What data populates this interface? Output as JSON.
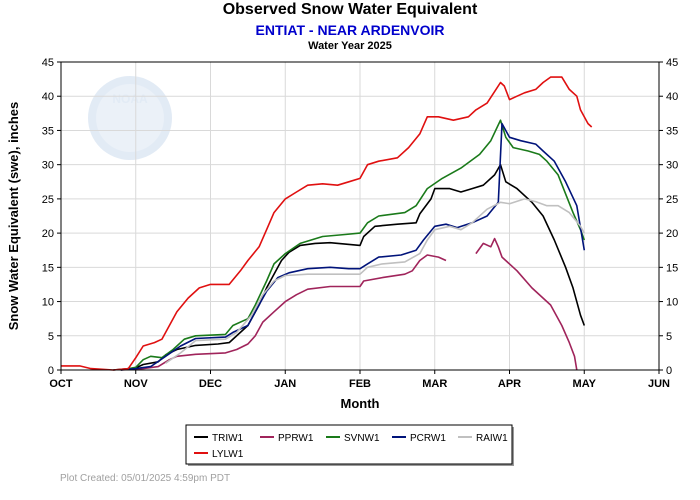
{
  "header": {
    "title": "Observed Snow Water Equivalent",
    "subtitle": "ENTIAT - NEAR ARDENVOIR",
    "caption": "Water Year 2025"
  },
  "footer": {
    "plot_created": "Plot Created: 05/01/2025 4:59pm PDT"
  },
  "colors": {
    "subtitle": "#0000cc",
    "grid": "#d9d9d9",
    "footnote": "#a0a0a0"
  },
  "logo": {
    "text": "NOAA"
  },
  "chart_data": {
    "type": "line",
    "title": "Observed Snow Water Equivalent",
    "xlabel": "Month",
    "ylabel": "Snow Water Equivalent (swe),  inches",
    "x_unit": "month index from Oct 1 (0 = Oct, 1 = Nov, ... 8 = Jun)",
    "x_ticks": [
      "OCT",
      "NOV",
      "DEC",
      "JAN",
      "FEB",
      "MAR",
      "APR",
      "MAY",
      "JUN"
    ],
    "xlim": [
      0,
      8
    ],
    "ylim": [
      0,
      45
    ],
    "y_ticks": [
      0,
      5,
      10,
      15,
      20,
      25,
      30,
      35,
      40,
      45
    ],
    "grid": true,
    "legend_position": "bottom",
    "series": [
      {
        "name": "TRIW1",
        "color": "#000000",
        "points": [
          [
            0.7,
            0
          ],
          [
            1.0,
            0.3
          ],
          [
            1.1,
            0.8
          ],
          [
            1.3,
            1.2
          ],
          [
            1.4,
            2.2
          ],
          [
            1.55,
            3.0
          ],
          [
            1.8,
            3.6
          ],
          [
            2.1,
            3.8
          ],
          [
            2.25,
            4.0
          ],
          [
            2.5,
            6.5
          ],
          [
            2.65,
            9.5
          ],
          [
            2.75,
            12
          ],
          [
            2.85,
            14
          ],
          [
            2.95,
            16
          ],
          [
            3.05,
            17.2
          ],
          [
            3.2,
            18.2
          ],
          [
            3.4,
            18.5
          ],
          [
            3.6,
            18.6
          ],
          [
            3.8,
            18.4
          ],
          [
            4.0,
            18.2
          ],
          [
            4.05,
            19.5
          ],
          [
            4.2,
            21.0
          ],
          [
            4.5,
            21.3
          ],
          [
            4.75,
            21.5
          ],
          [
            4.8,
            22.8
          ],
          [
            4.95,
            25.0
          ],
          [
            5.0,
            26.5
          ],
          [
            5.2,
            26.5
          ],
          [
            5.35,
            26.0
          ],
          [
            5.5,
            26.5
          ],
          [
            5.65,
            27.0
          ],
          [
            5.8,
            28.5
          ],
          [
            5.88,
            30.0
          ],
          [
            5.95,
            27.5
          ],
          [
            6.1,
            26.5
          ],
          [
            6.3,
            24.5
          ],
          [
            6.45,
            22.5
          ],
          [
            6.6,
            19.0
          ],
          [
            6.75,
            15.0
          ],
          [
            6.85,
            12.0
          ],
          [
            6.95,
            8.0
          ],
          [
            7.0,
            6.5
          ]
        ]
      },
      {
        "name": "PPRW1",
        "color": "#a0245b",
        "segments": [
          [
            [
              0.8,
              0
            ],
            [
              1.1,
              0.2
            ],
            [
              1.3,
              0.5
            ],
            [
              1.45,
              1.5
            ],
            [
              1.55,
              2.0
            ],
            [
              1.8,
              2.3
            ],
            [
              2.2,
              2.5
            ],
            [
              2.35,
              3.0
            ],
            [
              2.5,
              3.8
            ],
            [
              2.6,
              5.0
            ],
            [
              2.7,
              7.0
            ],
            [
              2.85,
              8.5
            ],
            [
              3.0,
              10.0
            ],
            [
              3.15,
              11.0
            ],
            [
              3.3,
              11.8
            ],
            [
              3.6,
              12.2
            ],
            [
              4.0,
              12.2
            ],
            [
              4.05,
              13.0
            ],
            [
              4.3,
              13.5
            ],
            [
              4.6,
              14.0
            ],
            [
              4.7,
              14.5
            ],
            [
              4.8,
              16.0
            ],
            [
              4.9,
              16.8
            ],
            [
              5.05,
              16.5
            ],
            [
              5.15,
              16.0
            ]
          ],
          [
            [
              5.55,
              17.0
            ],
            [
              5.65,
              18.5
            ],
            [
              5.75,
              18.0
            ],
            [
              5.8,
              19.2
            ],
            [
              5.85,
              18.0
            ],
            [
              5.9,
              16.5
            ],
            [
              6.1,
              14.5
            ],
            [
              6.3,
              12.0
            ],
            [
              6.45,
              10.5
            ],
            [
              6.55,
              9.5
            ],
            [
              6.7,
              6.5
            ],
            [
              6.8,
              4.0
            ],
            [
              6.87,
              2.0
            ],
            [
              6.9,
              0.0
            ]
          ]
        ]
      },
      {
        "name": "SVNW1",
        "color": "#1a7a1a",
        "points": [
          [
            0.8,
            0
          ],
          [
            1.0,
            0.4
          ],
          [
            1.1,
            1.5
          ],
          [
            1.2,
            2.0
          ],
          [
            1.35,
            1.8
          ],
          [
            1.5,
            3.0
          ],
          [
            1.65,
            4.5
          ],
          [
            1.8,
            5.0
          ],
          [
            2.2,
            5.2
          ],
          [
            2.3,
            6.5
          ],
          [
            2.5,
            7.5
          ],
          [
            2.6,
            9.5
          ],
          [
            2.75,
            13.0
          ],
          [
            2.85,
            15.5
          ],
          [
            3.0,
            17.0
          ],
          [
            3.2,
            18.5
          ],
          [
            3.5,
            19.5
          ],
          [
            3.8,
            19.8
          ],
          [
            4.0,
            20.0
          ],
          [
            4.1,
            21.5
          ],
          [
            4.25,
            22.5
          ],
          [
            4.6,
            23.0
          ],
          [
            4.75,
            24.0
          ],
          [
            4.9,
            26.5
          ],
          [
            5.1,
            28.0
          ],
          [
            5.35,
            29.5
          ],
          [
            5.6,
            31.5
          ],
          [
            5.75,
            33.5
          ],
          [
            5.88,
            36.5
          ],
          [
            5.95,
            34.0
          ],
          [
            6.05,
            32.5
          ],
          [
            6.25,
            32.0
          ],
          [
            6.4,
            31.5
          ],
          [
            6.5,
            30.5
          ],
          [
            6.65,
            28.5
          ],
          [
            6.85,
            23.0
          ],
          [
            6.95,
            20.5
          ],
          [
            7.0,
            19.0
          ]
        ]
      },
      {
        "name": "PCRW1",
        "color": "#00137a",
        "points": [
          [
            0.8,
            0
          ],
          [
            1.0,
            0.2
          ],
          [
            1.2,
            0.5
          ],
          [
            1.4,
            2.0
          ],
          [
            1.6,
            3.5
          ],
          [
            1.8,
            4.6
          ],
          [
            2.2,
            4.8
          ],
          [
            2.3,
            5.5
          ],
          [
            2.5,
            6.5
          ],
          [
            2.6,
            8.5
          ],
          [
            2.75,
            11.5
          ],
          [
            2.9,
            13.5
          ],
          [
            3.05,
            14.2
          ],
          [
            3.3,
            14.8
          ],
          [
            3.6,
            15.0
          ],
          [
            3.85,
            14.8
          ],
          [
            4.0,
            14.8
          ],
          [
            4.1,
            15.5
          ],
          [
            4.25,
            16.5
          ],
          [
            4.55,
            16.8
          ],
          [
            4.75,
            17.5
          ],
          [
            4.85,
            19.0
          ],
          [
            5.0,
            21.0
          ],
          [
            5.15,
            21.3
          ],
          [
            5.3,
            20.8
          ],
          [
            5.5,
            21.5
          ],
          [
            5.7,
            22.5
          ],
          [
            5.85,
            24.5
          ],
          [
            5.9,
            36.0
          ],
          [
            6.0,
            34.0
          ],
          [
            6.15,
            33.5
          ],
          [
            6.35,
            33.0
          ],
          [
            6.45,
            32.0
          ],
          [
            6.6,
            30.5
          ],
          [
            6.75,
            27.5
          ],
          [
            6.9,
            24.0
          ],
          [
            7.0,
            17.5
          ]
        ]
      },
      {
        "name": "RAIW1",
        "color": "#c0c0c0",
        "points": [
          [
            1.4,
            1.0
          ],
          [
            1.6,
            2.5
          ],
          [
            1.8,
            4.3
          ],
          [
            2.2,
            4.5
          ],
          [
            2.35,
            5.5
          ],
          [
            2.55,
            8.0
          ],
          [
            2.7,
            11.0
          ],
          [
            2.85,
            13.0
          ],
          [
            3.0,
            13.8
          ],
          [
            3.3,
            14.0
          ],
          [
            3.6,
            14.0
          ],
          [
            4.0,
            14.0
          ],
          [
            4.1,
            15.0
          ],
          [
            4.3,
            15.5
          ],
          [
            4.6,
            15.8
          ],
          [
            4.8,
            17.0
          ],
          [
            4.9,
            19.0
          ],
          [
            5.0,
            20.5
          ],
          [
            5.2,
            21.0
          ],
          [
            5.35,
            20.5
          ],
          [
            5.5,
            21.5
          ],
          [
            5.7,
            23.5
          ],
          [
            5.88,
            24.5
          ],
          [
            6.0,
            24.3
          ],
          [
            6.2,
            25.0
          ],
          [
            6.35,
            24.6
          ],
          [
            6.5,
            24.0
          ],
          [
            6.65,
            24.0
          ],
          [
            6.8,
            23.0
          ],
          [
            6.95,
            21.0
          ],
          [
            7.0,
            20.0
          ]
        ]
      },
      {
        "name": "LYLW1",
        "color": "#e01010",
        "points": [
          [
            0,
            0.6
          ],
          [
            0.25,
            0.6
          ],
          [
            0.4,
            0.2
          ],
          [
            0.7,
            0
          ],
          [
            0.9,
            0.2
          ],
          [
            1.0,
            1.8
          ],
          [
            1.1,
            3.5
          ],
          [
            1.25,
            4.0
          ],
          [
            1.35,
            4.5
          ],
          [
            1.45,
            6.5
          ],
          [
            1.55,
            8.5
          ],
          [
            1.7,
            10.5
          ],
          [
            1.85,
            12.0
          ],
          [
            2.0,
            12.5
          ],
          [
            2.25,
            12.5
          ],
          [
            2.4,
            14.5
          ],
          [
            2.5,
            16.0
          ],
          [
            2.65,
            18.0
          ],
          [
            2.75,
            20.5
          ],
          [
            2.85,
            23.0
          ],
          [
            3.0,
            25.0
          ],
          [
            3.15,
            26.0
          ],
          [
            3.3,
            27.0
          ],
          [
            3.5,
            27.2
          ],
          [
            3.7,
            27.0
          ],
          [
            3.85,
            27.5
          ],
          [
            4.0,
            28.0
          ],
          [
            4.1,
            30.0
          ],
          [
            4.25,
            30.5
          ],
          [
            4.5,
            31.0
          ],
          [
            4.65,
            32.5
          ],
          [
            4.8,
            34.5
          ],
          [
            4.9,
            37.0
          ],
          [
            5.05,
            37.0
          ],
          [
            5.25,
            36.5
          ],
          [
            5.45,
            37.0
          ],
          [
            5.55,
            38.0
          ],
          [
            5.7,
            39.0
          ],
          [
            5.82,
            41.0
          ],
          [
            5.88,
            42.0
          ],
          [
            5.93,
            41.5
          ],
          [
            6.0,
            39.5
          ],
          [
            6.1,
            40.0
          ],
          [
            6.2,
            40.5
          ],
          [
            6.35,
            41.0
          ],
          [
            6.45,
            42.0
          ],
          [
            6.55,
            42.8
          ],
          [
            6.7,
            42.8
          ],
          [
            6.8,
            41.0
          ],
          [
            6.9,
            40.0
          ],
          [
            6.95,
            38.0
          ],
          [
            7.05,
            36.0
          ],
          [
            7.1,
            35.5
          ]
        ]
      }
    ]
  }
}
